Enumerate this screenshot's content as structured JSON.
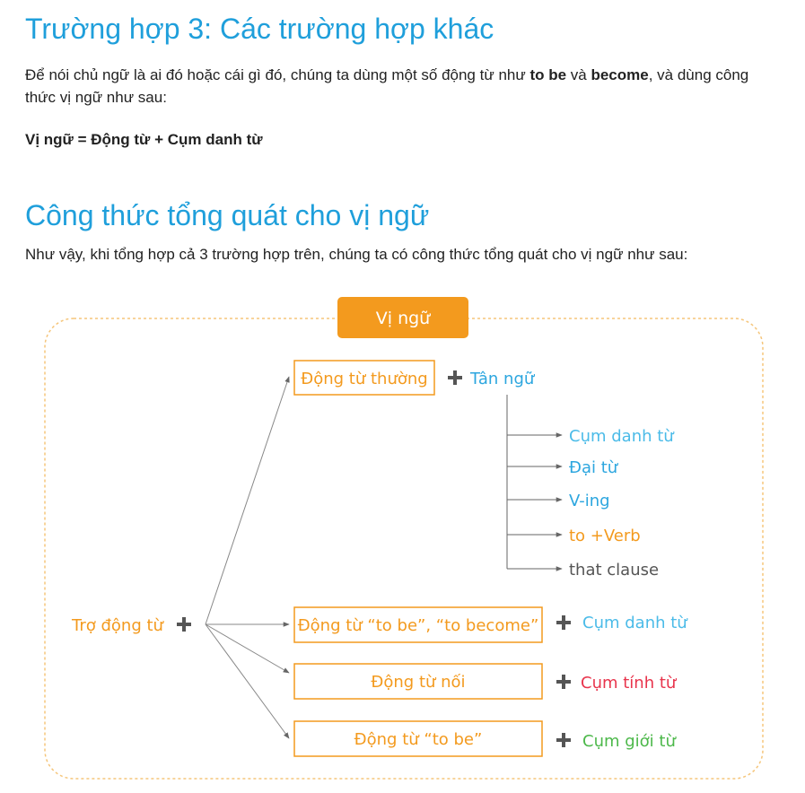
{
  "section3": {
    "title": "Trường hợp 3: Các trường hợp khác",
    "para_1": "Để nói chủ ngữ là ai đó hoặc cái gì đó, chúng ta dùng một số động từ như ",
    "para_bold_1": "to be",
    "para_2": " và ",
    "para_bold_2": "become",
    "para_3": ", và dùng công thức vị ngữ như sau:",
    "formula": "Vị ngữ = Động từ + Cụm danh từ"
  },
  "section_general": {
    "title": "Công thức tổng quát cho vị ngữ",
    "intro": "Như vậy, khi tổng hợp cả 3 trường hợp trên, chúng ta có công thức tổng quát cho vị ngữ như sau:"
  },
  "diagram": {
    "header": "Vị ngữ",
    "left_label": "Trợ động từ",
    "box_regular_verb": "Động từ thường",
    "object_label": "Tân ngữ",
    "object_types": [
      "Cụm danh từ",
      "Đại từ",
      "V-ing",
      "to +Verb",
      "that clause"
    ],
    "rows": [
      {
        "box": "Động từ “to be”, “to become”",
        "result": "Cụm danh từ"
      },
      {
        "box": "Động từ nối",
        "result": "Cụm tính từ"
      },
      {
        "box": "Động từ “to be”",
        "result": "Cụm giới từ"
      }
    ]
  },
  "colors": {
    "heading": "#1f9fdb",
    "orange": "#f39a1e",
    "blue": "#2ca6df",
    "light_blue": "#4bbbe8",
    "red": "#e8344c",
    "green": "#4cb84a",
    "gray": "#555555"
  }
}
